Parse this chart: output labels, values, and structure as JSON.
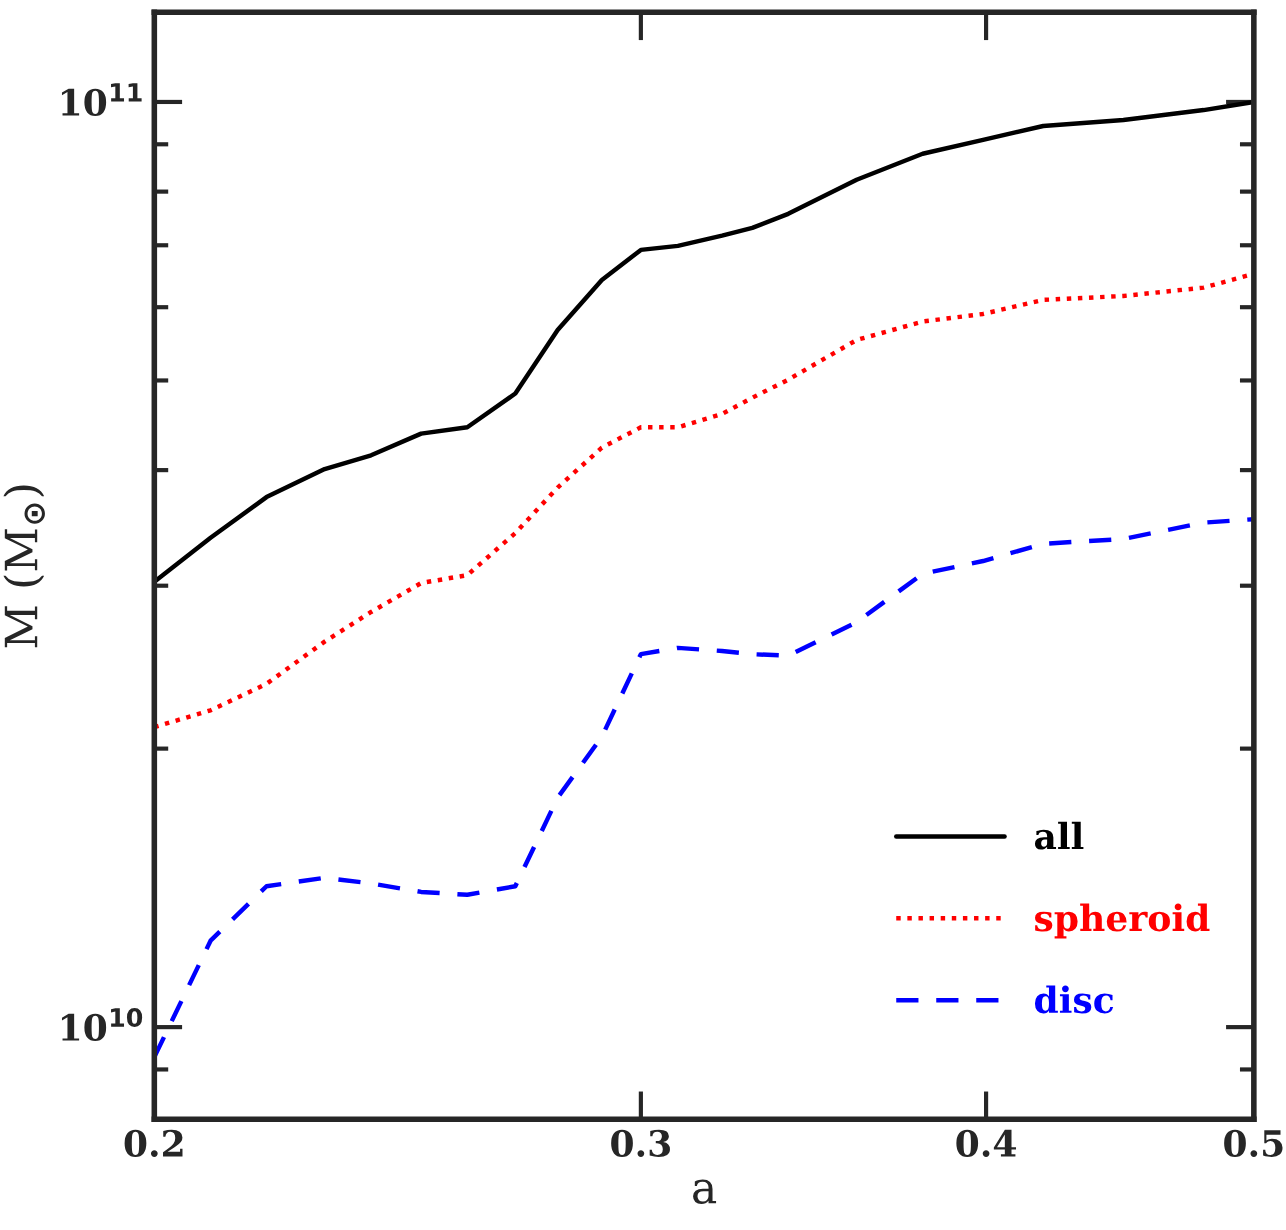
{
  "chart_data": {
    "type": "line",
    "xlabel": "a",
    "ylabel": "M (M$_{⊙}$)",
    "log": "xy",
    "xlim": [
      0.2,
      0.5
    ],
    "xticks": [
      0.2,
      0.3,
      0.4,
      0.5
    ],
    "ylim": [
      7950000000.0,
      125000000000.0
    ],
    "yticks": [
      {
        "value": 9000000000.0,
        "label": null
      },
      {
        "value": 10000000000.0,
        "label": "10$^{10}$"
      },
      {
        "value": 20000000000.0,
        "label": null
      },
      {
        "value": 30000000000.0,
        "label": null
      },
      {
        "value": 40000000000.0,
        "label": null
      },
      {
        "value": 50000000000.0,
        "label": null
      },
      {
        "value": 60000000000.0,
        "label": null
      },
      {
        "value": 70000000000.0,
        "label": null
      },
      {
        "value": 80000000000.0,
        "label": null
      },
      {
        "value": 90000000000.0,
        "label": null
      },
      {
        "value": 100000000000.0,
        "label": "10$^{11}$"
      }
    ],
    "x": [
      0.2,
      0.2096,
      0.2196,
      0.2305,
      0.2396,
      0.2498,
      0.2596,
      0.2702,
      0.2799,
      0.2904,
      0.3,
      0.3094,
      0.321,
      0.3292,
      0.3392,
      0.3591,
      0.3794,
      0.399,
      0.4195,
      0.4485,
      0.4795,
      0.5
    ],
    "legend": "bottom right",
    "grid": false,
    "series": [
      {
        "name": "all",
        "color": "#000000",
        "line_style": "solid",
        "values": [
          30300000000.0,
          33800000000.0,
          37400000000.0,
          40100000000.0,
          41500000000.0,
          43800000000.0,
          44500000000.0,
          48400000000.0,
          56700000000.0,
          64200000000.0,
          69200000000.0,
          69900000000.0,
          71700000000.0,
          73100000000.0,
          75700000000.0,
          82400000000.0,
          87900000000.0,
          91000000000.0,
          94200000000.0,
          95600000000.0,
          98000000000.0,
          100000000000.0
        ]
      },
      {
        "name": "spheroid",
        "color": "#ff0000",
        "line_style": "dotted",
        "values": [
          21100000000.0,
          22000000000.0,
          23500000000.0,
          26100000000.0,
          28100000000.0,
          30200000000.0,
          30800000000.0,
          34200000000.0,
          38300000000.0,
          42300000000.0,
          44500000000.0,
          44500000000.0,
          46000000000.0,
          47900000000.0,
          50100000000.0,
          55300000000.0,
          57900000000.0,
          59000000000.0,
          61100000000.0,
          61700000000.0,
          63000000000.0,
          65200000000.0
        ]
      },
      {
        "name": "disc",
        "color": "#0000ff",
        "line_style": "dashed",
        "values": [
          9280000000.0,
          12400000000.0,
          14200000000.0,
          14500000000.0,
          14300000000.0,
          14000000000.0,
          13900000000.0,
          14200000000.0,
          17700000000.0,
          20600000000.0,
          25300000000.0,
          25700000000.0,
          25500000000.0,
          25300000000.0,
          25200000000.0,
          27400000000.0,
          30900000000.0,
          31900000000.0,
          33300000000.0,
          33700000000.0,
          35100000000.0,
          35400000000.0
        ]
      }
    ]
  }
}
